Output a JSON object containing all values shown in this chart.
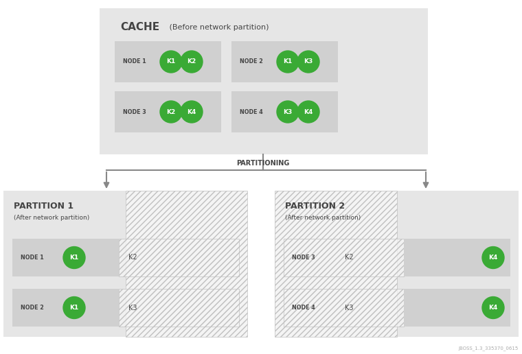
{
  "bg_color": "#ffffff",
  "light_gray": "#e6e6e6",
  "mid_gray": "#d0d0d0",
  "node_bg": "#c8c8c8",
  "green": "#3aaa35",
  "text_dark": "#444444",
  "white": "#ffffff",
  "arrow_color": "#888888",
  "cache_title": "CACHE",
  "cache_subtitle": " (Before network partition)",
  "partitioning_label": "PARTITIONING",
  "partition1_title": "PARTITION 1",
  "partition1_subtitle": "(After network partition)",
  "partition2_title": "PARTITION 2",
  "partition2_subtitle": "(After network partition)",
  "watermark": "JBOSS_1.3_335370_0615",
  "fig_w": 7.6,
  "fig_h": 5.16,
  "dpi": 100
}
